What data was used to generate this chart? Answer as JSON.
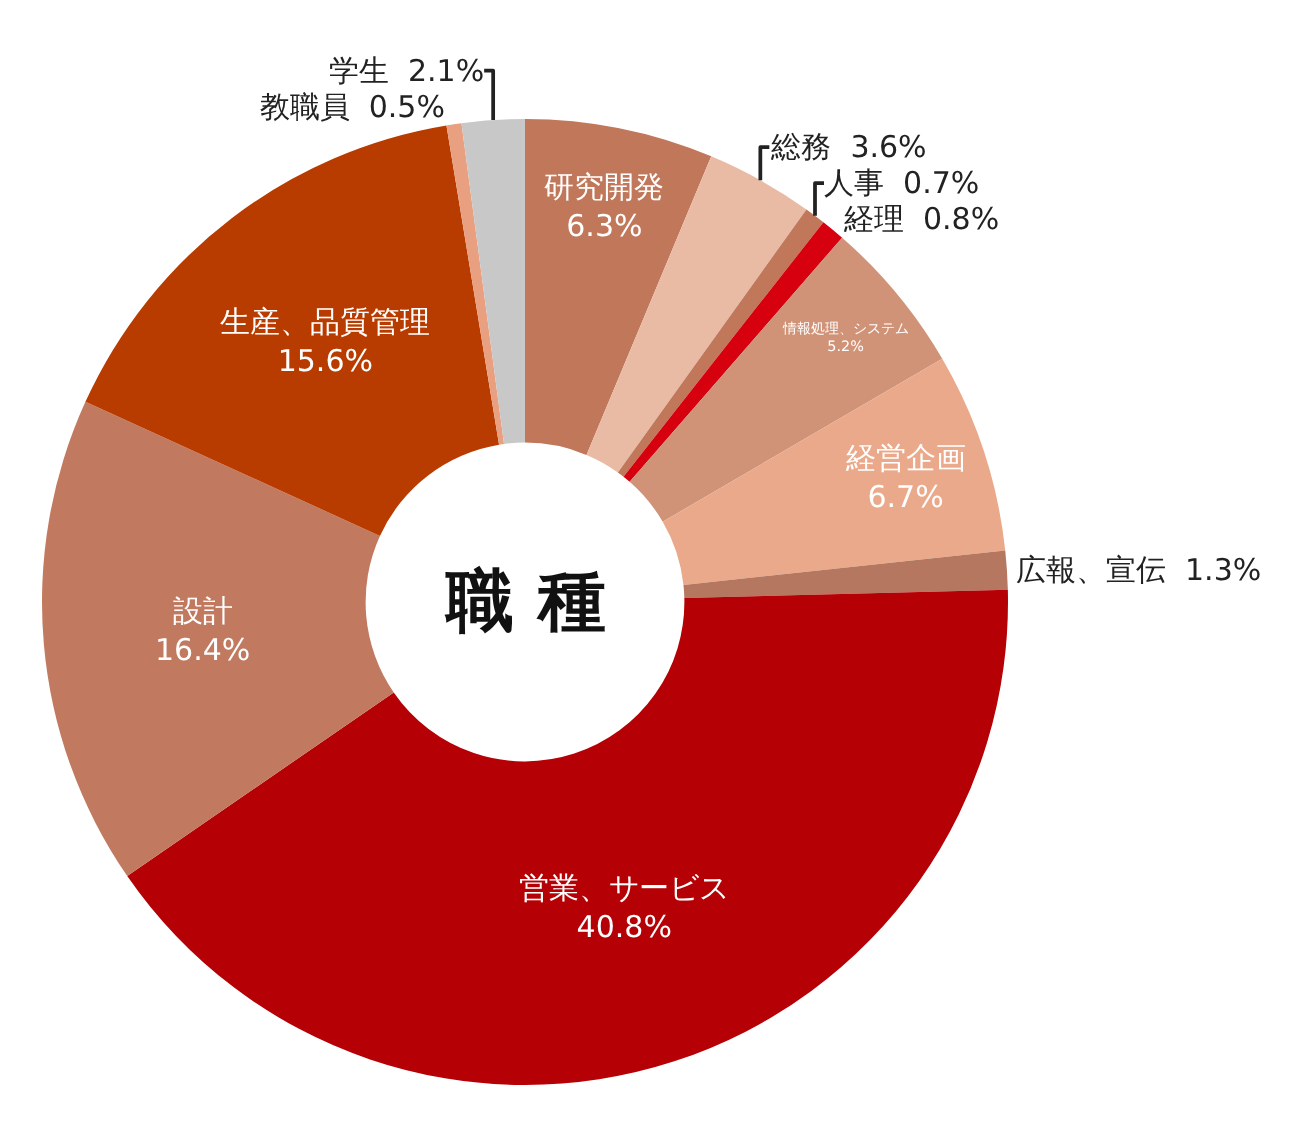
{
  "chart_data": {
    "type": "donut",
    "title": "職 種",
    "legend": false,
    "categories": [
      "研究開発",
      "総務",
      "人事",
      "経理",
      "情報処理、システム",
      "経営企画",
      "広報、宣伝",
      "営業、サービス",
      "設計",
      "生産、品質管理",
      "教職員",
      "学生"
    ],
    "values": [
      6.3,
      3.6,
      0.7,
      0.8,
      5.2,
      6.7,
      1.3,
      40.8,
      16.4,
      15.6,
      0.5,
      2.1
    ],
    "value_labels": [
      "6.3%",
      "3.6%",
      "0.7%",
      "0.8%",
      "5.2%",
      "6.7%",
      "1.3%",
      "40.8%",
      "16.4%",
      "15.6%",
      "0.5%",
      "2.1%"
    ],
    "colors": [
      "#c0775a",
      "#e9bba5",
      "#c0775a",
      "#d6000f",
      "#d09377",
      "#eaa98a",
      "#b5775f",
      "#b50005",
      "#c17a5f",
      "#b83c00",
      "#e8a080",
      "#c8c8c8"
    ]
  }
}
